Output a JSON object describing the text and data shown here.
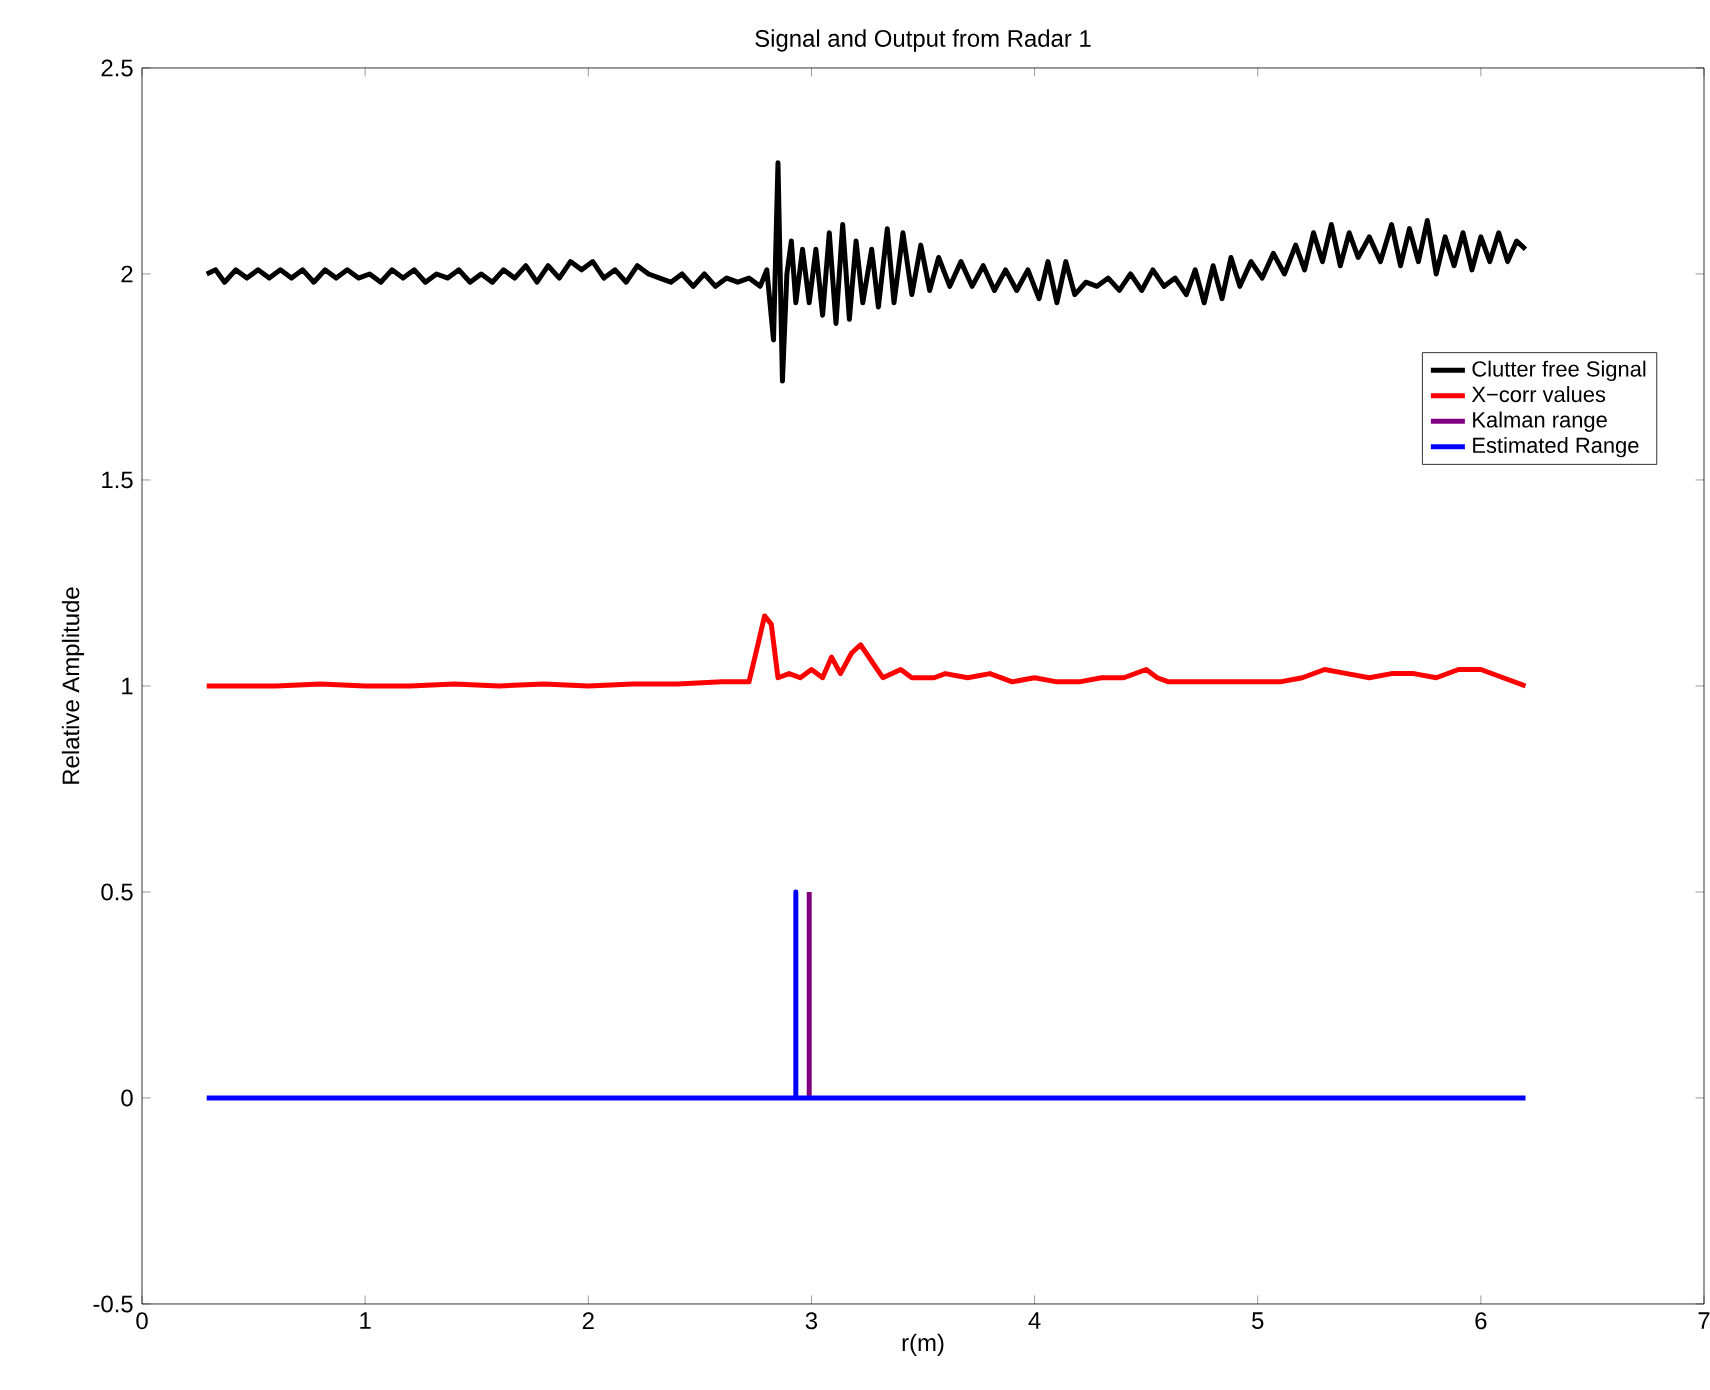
{
  "chart_data": {
    "type": "line",
    "title": "Signal and Output from Radar 1",
    "xlabel": "r(m)",
    "ylabel": "Relative Amplitude",
    "xlim": [
      0,
      7
    ],
    "ylim": [
      -0.5,
      2.5
    ],
    "xticks": [
      0,
      1,
      2,
      3,
      4,
      5,
      6,
      7
    ],
    "yticks": [
      -0.5,
      0,
      0.5,
      1,
      1.5,
      2,
      2.5
    ],
    "grid": false,
    "legend": "right",
    "marker": "none",
    "line_style": "solid",
    "series": [
      {
        "name": "Clutter free Signal",
        "color": "#000000",
        "x": [
          0.29,
          0.33,
          0.37,
          0.42,
          0.47,
          0.52,
          0.57,
          0.62,
          0.67,
          0.72,
          0.77,
          0.82,
          0.87,
          0.92,
          0.97,
          1.02,
          1.07,
          1.12,
          1.17,
          1.22,
          1.27,
          1.32,
          1.37,
          1.42,
          1.47,
          1.52,
          1.57,
          1.62,
          1.67,
          1.72,
          1.77,
          1.82,
          1.87,
          1.92,
          1.97,
          2.02,
          2.07,
          2.12,
          2.17,
          2.22,
          2.27,
          2.32,
          2.37,
          2.42,
          2.47,
          2.52,
          2.57,
          2.62,
          2.67,
          2.72,
          2.77,
          2.8,
          2.83,
          2.85,
          2.87,
          2.89,
          2.91,
          2.93,
          2.96,
          2.99,
          3.02,
          3.05,
          3.08,
          3.11,
          3.14,
          3.17,
          3.2,
          3.23,
          3.27,
          3.3,
          3.34,
          3.37,
          3.41,
          3.45,
          3.49,
          3.53,
          3.57,
          3.62,
          3.67,
          3.72,
          3.77,
          3.82,
          3.87,
          3.92,
          3.97,
          4.02,
          4.06,
          4.1,
          4.14,
          4.18,
          4.23,
          4.28,
          4.33,
          4.38,
          4.43,
          4.48,
          4.53,
          4.58,
          4.63,
          4.68,
          4.72,
          4.76,
          4.8,
          4.84,
          4.88,
          4.92,
          4.97,
          5.02,
          5.07,
          5.12,
          5.17,
          5.21,
          5.25,
          5.29,
          5.33,
          5.37,
          5.41,
          5.45,
          5.5,
          5.55,
          5.6,
          5.64,
          5.68,
          5.72,
          5.76,
          5.8,
          5.84,
          5.88,
          5.92,
          5.96,
          6.0,
          6.04,
          6.08,
          6.12,
          6.16,
          6.2
        ],
        "values": [
          2.0,
          2.01,
          1.98,
          2.01,
          1.99,
          2.01,
          1.99,
          2.01,
          1.99,
          2.01,
          1.98,
          2.01,
          1.99,
          2.01,
          1.99,
          2.0,
          1.98,
          2.01,
          1.99,
          2.01,
          1.98,
          2.0,
          1.99,
          2.01,
          1.98,
          2.0,
          1.98,
          2.01,
          1.99,
          2.02,
          1.98,
          2.02,
          1.99,
          2.03,
          2.01,
          2.03,
          1.99,
          2.01,
          1.98,
          2.02,
          2.0,
          1.99,
          1.98,
          2.0,
          1.97,
          2.0,
          1.97,
          1.99,
          1.98,
          1.99,
          1.97,
          2.01,
          1.84,
          2.27,
          1.74,
          2.0,
          2.08,
          1.93,
          2.06,
          1.93,
          2.06,
          1.9,
          2.1,
          1.88,
          2.12,
          1.89,
          2.08,
          1.93,
          2.06,
          1.92,
          2.11,
          1.93,
          2.1,
          1.95,
          2.07,
          1.96,
          2.04,
          1.97,
          2.03,
          1.97,
          2.02,
          1.96,
          2.01,
          1.96,
          2.01,
          1.94,
          2.03,
          1.93,
          2.03,
          1.95,
          1.98,
          1.97,
          1.99,
          1.96,
          2.0,
          1.96,
          2.01,
          1.97,
          1.99,
          1.95,
          2.01,
          1.93,
          2.02,
          1.94,
          2.04,
          1.97,
          2.03,
          1.99,
          2.05,
          2.0,
          2.07,
          2.01,
          2.1,
          2.03,
          2.12,
          2.02,
          2.1,
          2.04,
          2.09,
          2.03,
          2.12,
          2.02,
          2.11,
          2.03,
          2.13,
          2.0,
          2.09,
          2.02,
          2.1,
          2.01,
          2.09,
          2.03,
          2.1,
          2.03,
          2.08,
          2.06
        ]
      },
      {
        "name": "X−corr values",
        "color": "#ff0000",
        "x": [
          0.29,
          0.4,
          0.6,
          0.8,
          1.0,
          1.2,
          1.4,
          1.6,
          1.8,
          2.0,
          2.2,
          2.4,
          2.6,
          2.72,
          2.76,
          2.79,
          2.82,
          2.85,
          2.9,
          2.95,
          3.0,
          3.05,
          3.09,
          3.13,
          3.18,
          3.22,
          3.27,
          3.32,
          3.4,
          3.45,
          3.55,
          3.6,
          3.7,
          3.8,
          3.9,
          4.0,
          4.1,
          4.2,
          4.3,
          4.4,
          4.5,
          4.55,
          4.6,
          4.8,
          5.0,
          5.1,
          5.2,
          5.3,
          5.4,
          5.5,
          5.6,
          5.7,
          5.8,
          5.9,
          6.0,
          6.1,
          6.2
        ],
        "values": [
          1.0,
          1.0,
          1.0,
          1.005,
          1.0,
          1.0,
          1.005,
          1.0,
          1.005,
          1.0,
          1.005,
          1.005,
          1.01,
          1.01,
          1.1,
          1.17,
          1.15,
          1.02,
          1.03,
          1.02,
          1.04,
          1.02,
          1.07,
          1.03,
          1.08,
          1.1,
          1.06,
          1.02,
          1.04,
          1.02,
          1.02,
          1.03,
          1.02,
          1.03,
          1.01,
          1.02,
          1.01,
          1.01,
          1.02,
          1.02,
          1.04,
          1.02,
          1.01,
          1.01,
          1.01,
          1.01,
          1.02,
          1.04,
          1.03,
          1.02,
          1.03,
          1.03,
          1.02,
          1.04,
          1.04,
          1.02,
          1.0
        ]
      },
      {
        "name": "Kalman range",
        "color": "#800080",
        "x": [
          2.99,
          2.99
        ],
        "values": [
          0,
          0.5
        ]
      },
      {
        "name": "Estimated Range",
        "color": "#0000ff",
        "x": [
          0.29,
          2.93,
          2.93,
          2.93,
          6.2
        ],
        "values": [
          0,
          0,
          0.5,
          0,
          0
        ]
      }
    ]
  }
}
